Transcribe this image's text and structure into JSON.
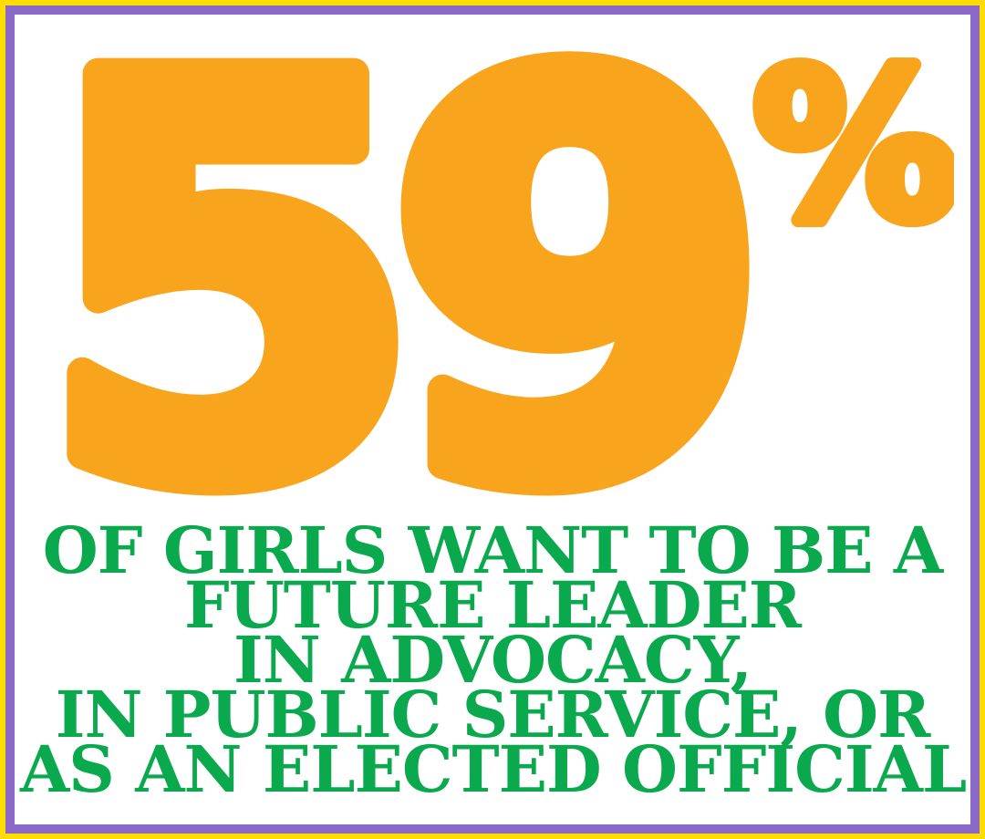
{
  "infographic": {
    "stat_value": "59",
    "stat_symbol": "%",
    "caption_lines": [
      "OF GIRLS WANT TO BE A",
      "FUTURE LEADER",
      "IN ADVOCACY,",
      "IN PUBLIC SERVICE, OR",
      "AS AN ELECTED OFFICIAL"
    ],
    "colors": {
      "stat_orange": "#F9A41D",
      "caption_green": "#0AA94E",
      "border_outer_yellow": "#FFDD00",
      "border_inner_purple": "#8A68C8",
      "background": "#FFFFFF"
    }
  },
  "chart_data": {
    "type": "table",
    "title": "59% of girls want to be a future leader in advocacy, in public service, or as an elected official",
    "values": [
      {
        "label": "Girls who want to be a future leader in advocacy, in public service, or as an elected official",
        "value": 59,
        "unit": "%"
      }
    ]
  }
}
